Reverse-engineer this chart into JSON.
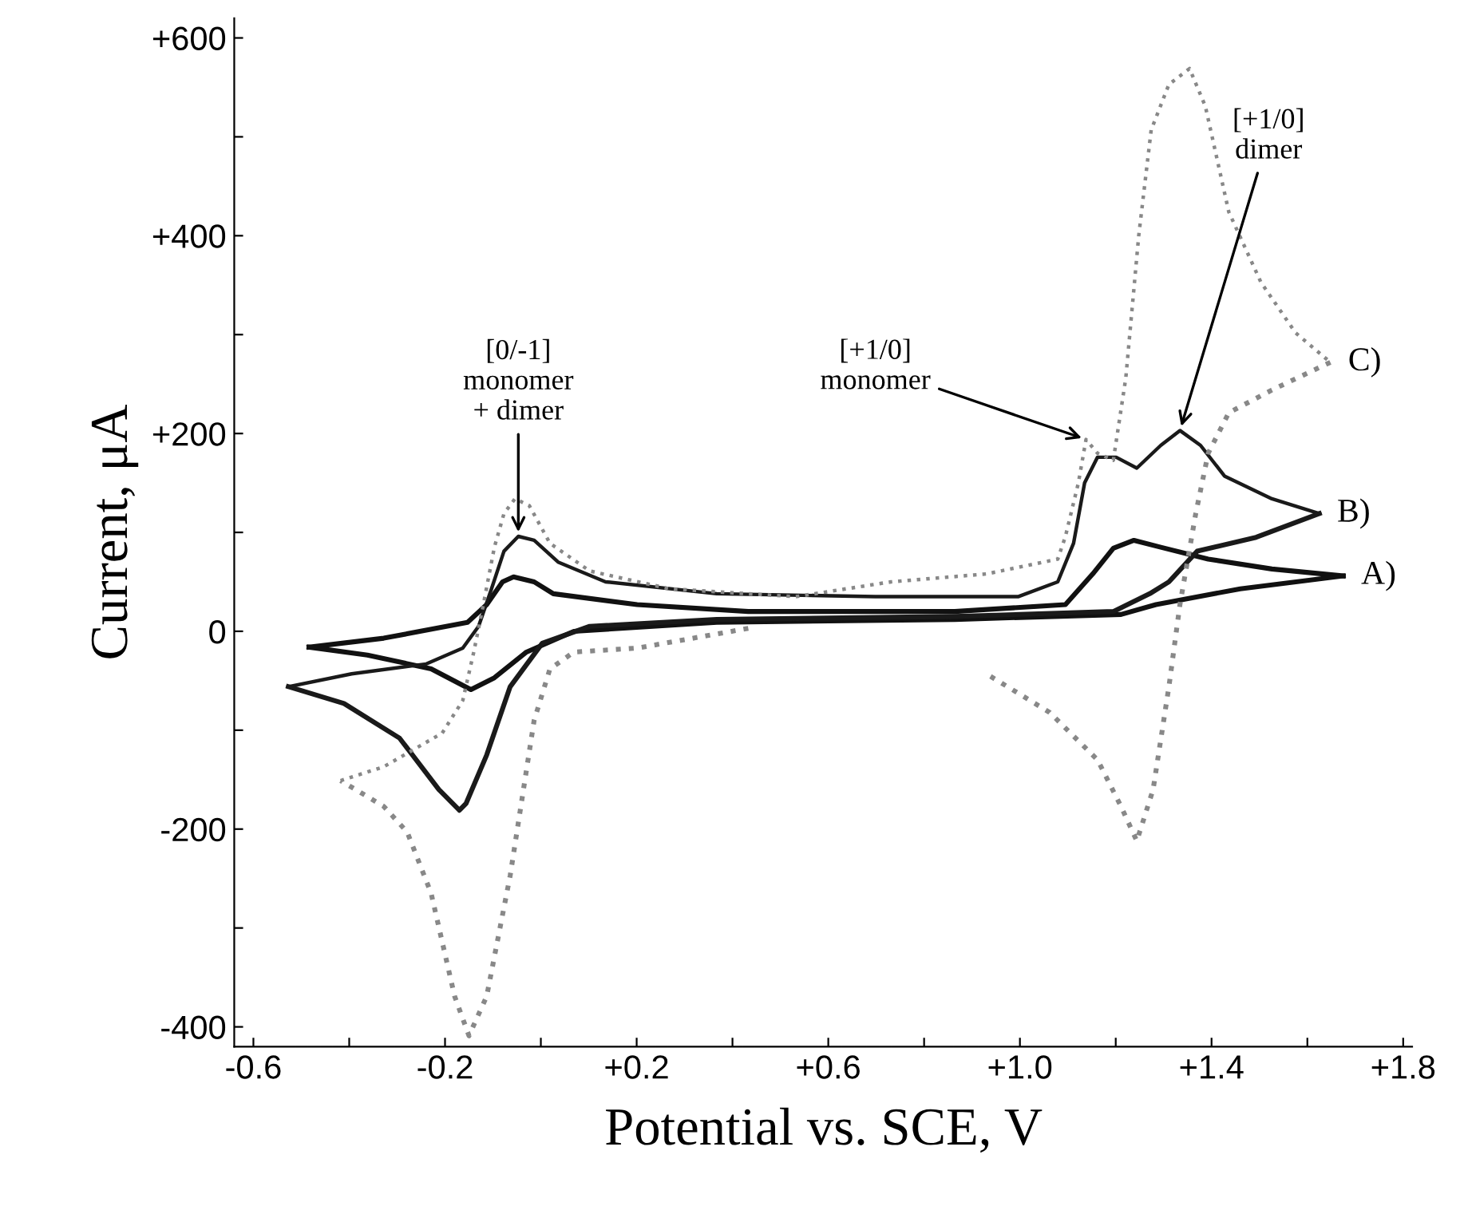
{
  "chart_data": {
    "type": "line",
    "xlabel": "Potential vs. SCE, V",
    "ylabel": "Current, μA",
    "xlim": [
      -0.64,
      1.82
    ],
    "ylim": [
      -420,
      620
    ],
    "xticks": [
      {
        "value": -0.6,
        "label": "-0.6"
      },
      {
        "value": -0.4,
        "label": null
      },
      {
        "value": -0.2,
        "label": "-0.2"
      },
      {
        "value": 0.0,
        "label": null
      },
      {
        "value": 0.2,
        "label": "+0.2"
      },
      {
        "value": 0.4,
        "label": null
      },
      {
        "value": 0.6,
        "label": "+0.6"
      },
      {
        "value": 0.8,
        "label": null
      },
      {
        "value": 1.0,
        "label": "+1.0"
      },
      {
        "value": 1.2,
        "label": null
      },
      {
        "value": 1.4,
        "label": "+1.4"
      },
      {
        "value": 1.6,
        "label": null
      },
      {
        "value": 1.8,
        "label": "+1.8"
      }
    ],
    "yticks": [
      {
        "value": -400,
        "label": "-400"
      },
      {
        "value": -300,
        "label": null
      },
      {
        "value": -200,
        "label": "-200"
      },
      {
        "value": -100,
        "label": null
      },
      0,
      {
        "value": 100,
        "label": null
      },
      {
        "value": 200,
        "label": "+200"
      },
      {
        "value": 300,
        "label": null
      },
      {
        "value": 400,
        "label": "+400"
      },
      {
        "value": 500,
        "label": null
      },
      {
        "value": 600,
        "label": "+600"
      }
    ],
    "grid": false,
    "legend": false,
    "marker": "none",
    "series": [
      {
        "name": "A)",
        "color": "#111111",
        "line_style": "solid",
        "x": [
          -0.484,
          -0.328,
          -0.153,
          -0.113,
          -0.08,
          -0.057,
          -0.014,
          0.026,
          0.201,
          0.433,
          0.864,
          1.095,
          1.152,
          1.195,
          1.238,
          1.294,
          1.393,
          1.526,
          1.675
        ],
        "values": [
          -16,
          -7,
          9,
          27,
          50,
          55,
          50,
          38,
          27,
          20,
          20,
          27,
          58,
          84,
          92,
          85,
          73,
          63,
          56
        ]
      },
      {
        "color": "#111111",
        "line_style": "solid",
        "x": [
          1.675,
          1.46,
          1.284,
          1.211,
          0.864,
          0.367,
          0.069,
          -0.03,
          -0.097,
          -0.146,
          -0.229,
          -0.362,
          -0.484
        ],
        "values": [
          56,
          43,
          27,
          17,
          12,
          9,
          0,
          -21,
          -47,
          -59,
          -38,
          -24,
          -16
        ]
      },
      {
        "name": "B)",
        "color": "#1a1a1a",
        "line_style": "solid",
        "x": [
          -0.527,
          -0.395,
          -0.239,
          -0.163,
          -0.13,
          -0.103,
          -0.077,
          -0.047,
          -0.014,
          0.036,
          0.135,
          0.367,
          0.698,
          0.996,
          1.079,
          1.112,
          1.135,
          1.162,
          1.201,
          1.244,
          1.294,
          1.334,
          1.377,
          1.427,
          1.526,
          1.625
        ],
        "values": [
          -56,
          -43,
          -33,
          -17,
          5,
          43,
          81,
          96,
          92,
          70,
          50,
          38,
          35,
          35,
          50,
          89,
          150,
          176,
          176,
          165,
          188,
          203,
          188,
          157,
          134,
          119
        ]
      },
      {
        "color": "#1a1a1a",
        "line_style": "solid",
        "x": [
          1.625,
          1.493,
          1.37,
          1.311,
          1.271,
          1.195,
          0.864,
          0.367,
          0.102,
          0.003,
          -0.064,
          -0.113,
          -0.156,
          -0.17,
          -0.213,
          -0.295,
          -0.411,
          -0.527
        ],
        "values": [
          119,
          95,
          81,
          50,
          38,
          20,
          15,
          12,
          5,
          -12,
          -56,
          -125,
          -174,
          -181,
          -160,
          -108,
          -73,
          -56
        ]
      },
      {
        "color": "#888888",
        "line_style": "dotted",
        "x": [
          0.433,
          0.201,
          0.069,
          0.019,
          -0.014,
          -0.064,
          -0.113,
          -0.15,
          -0.18,
          -0.229,
          -0.279,
          -0.328,
          -0.418
        ],
        "values": [
          3,
          -17,
          -21,
          -38,
          -90,
          -247,
          -369,
          -409,
          -369,
          -265,
          -203,
          -177,
          -151
        ]
      },
      {
        "name": "C)",
        "color": "#888888",
        "line_style": "dotted",
        "x": [
          -0.418,
          -0.328,
          -0.206,
          -0.163,
          -0.14,
          -0.12,
          -0.097,
          -0.077,
          -0.054,
          -0.024,
          0.019,
          0.102,
          0.268,
          0.532,
          0.731,
          0.93,
          1.079,
          1.095,
          1.122,
          1.138,
          1.162,
          1.195,
          1.221,
          1.248,
          1.274,
          1.311,
          1.354,
          1.387,
          1.436,
          1.503,
          1.575,
          1.648
        ],
        "values": [
          -151,
          -137,
          -103,
          -70,
          -21,
          27,
          85,
          119,
          134,
          127,
          89,
          61,
          43,
          35,
          50,
          58,
          73,
          96,
          150,
          194,
          180,
          173,
          256,
          400,
          507,
          553,
          569,
          531,
          424,
          353,
          302,
          272
        ]
      },
      {
        "color": "#888888",
        "line_style": "dotted",
        "x": [
          1.648,
          1.526,
          1.436,
          1.393,
          1.367,
          1.334,
          1.311,
          1.278,
          1.244,
          1.211,
          1.162,
          1.062,
          0.93
        ],
        "values": [
          272,
          244,
          221,
          180,
          119,
          27,
          -56,
          -160,
          -212,
          -177,
          -130,
          -82,
          -43
        ]
      }
    ],
    "annotations": [
      {
        "text": "[0/-1]\nmonomer\n+ dimer",
        "x": -0.047,
        "y": 96
      },
      {
        "text": "[+1/0]\nmonomer",
        "x": 1.138,
        "y": 194
      },
      {
        "text": "[+1/0]\ndimer",
        "x": 1.334,
        "y": 203
      }
    ]
  }
}
